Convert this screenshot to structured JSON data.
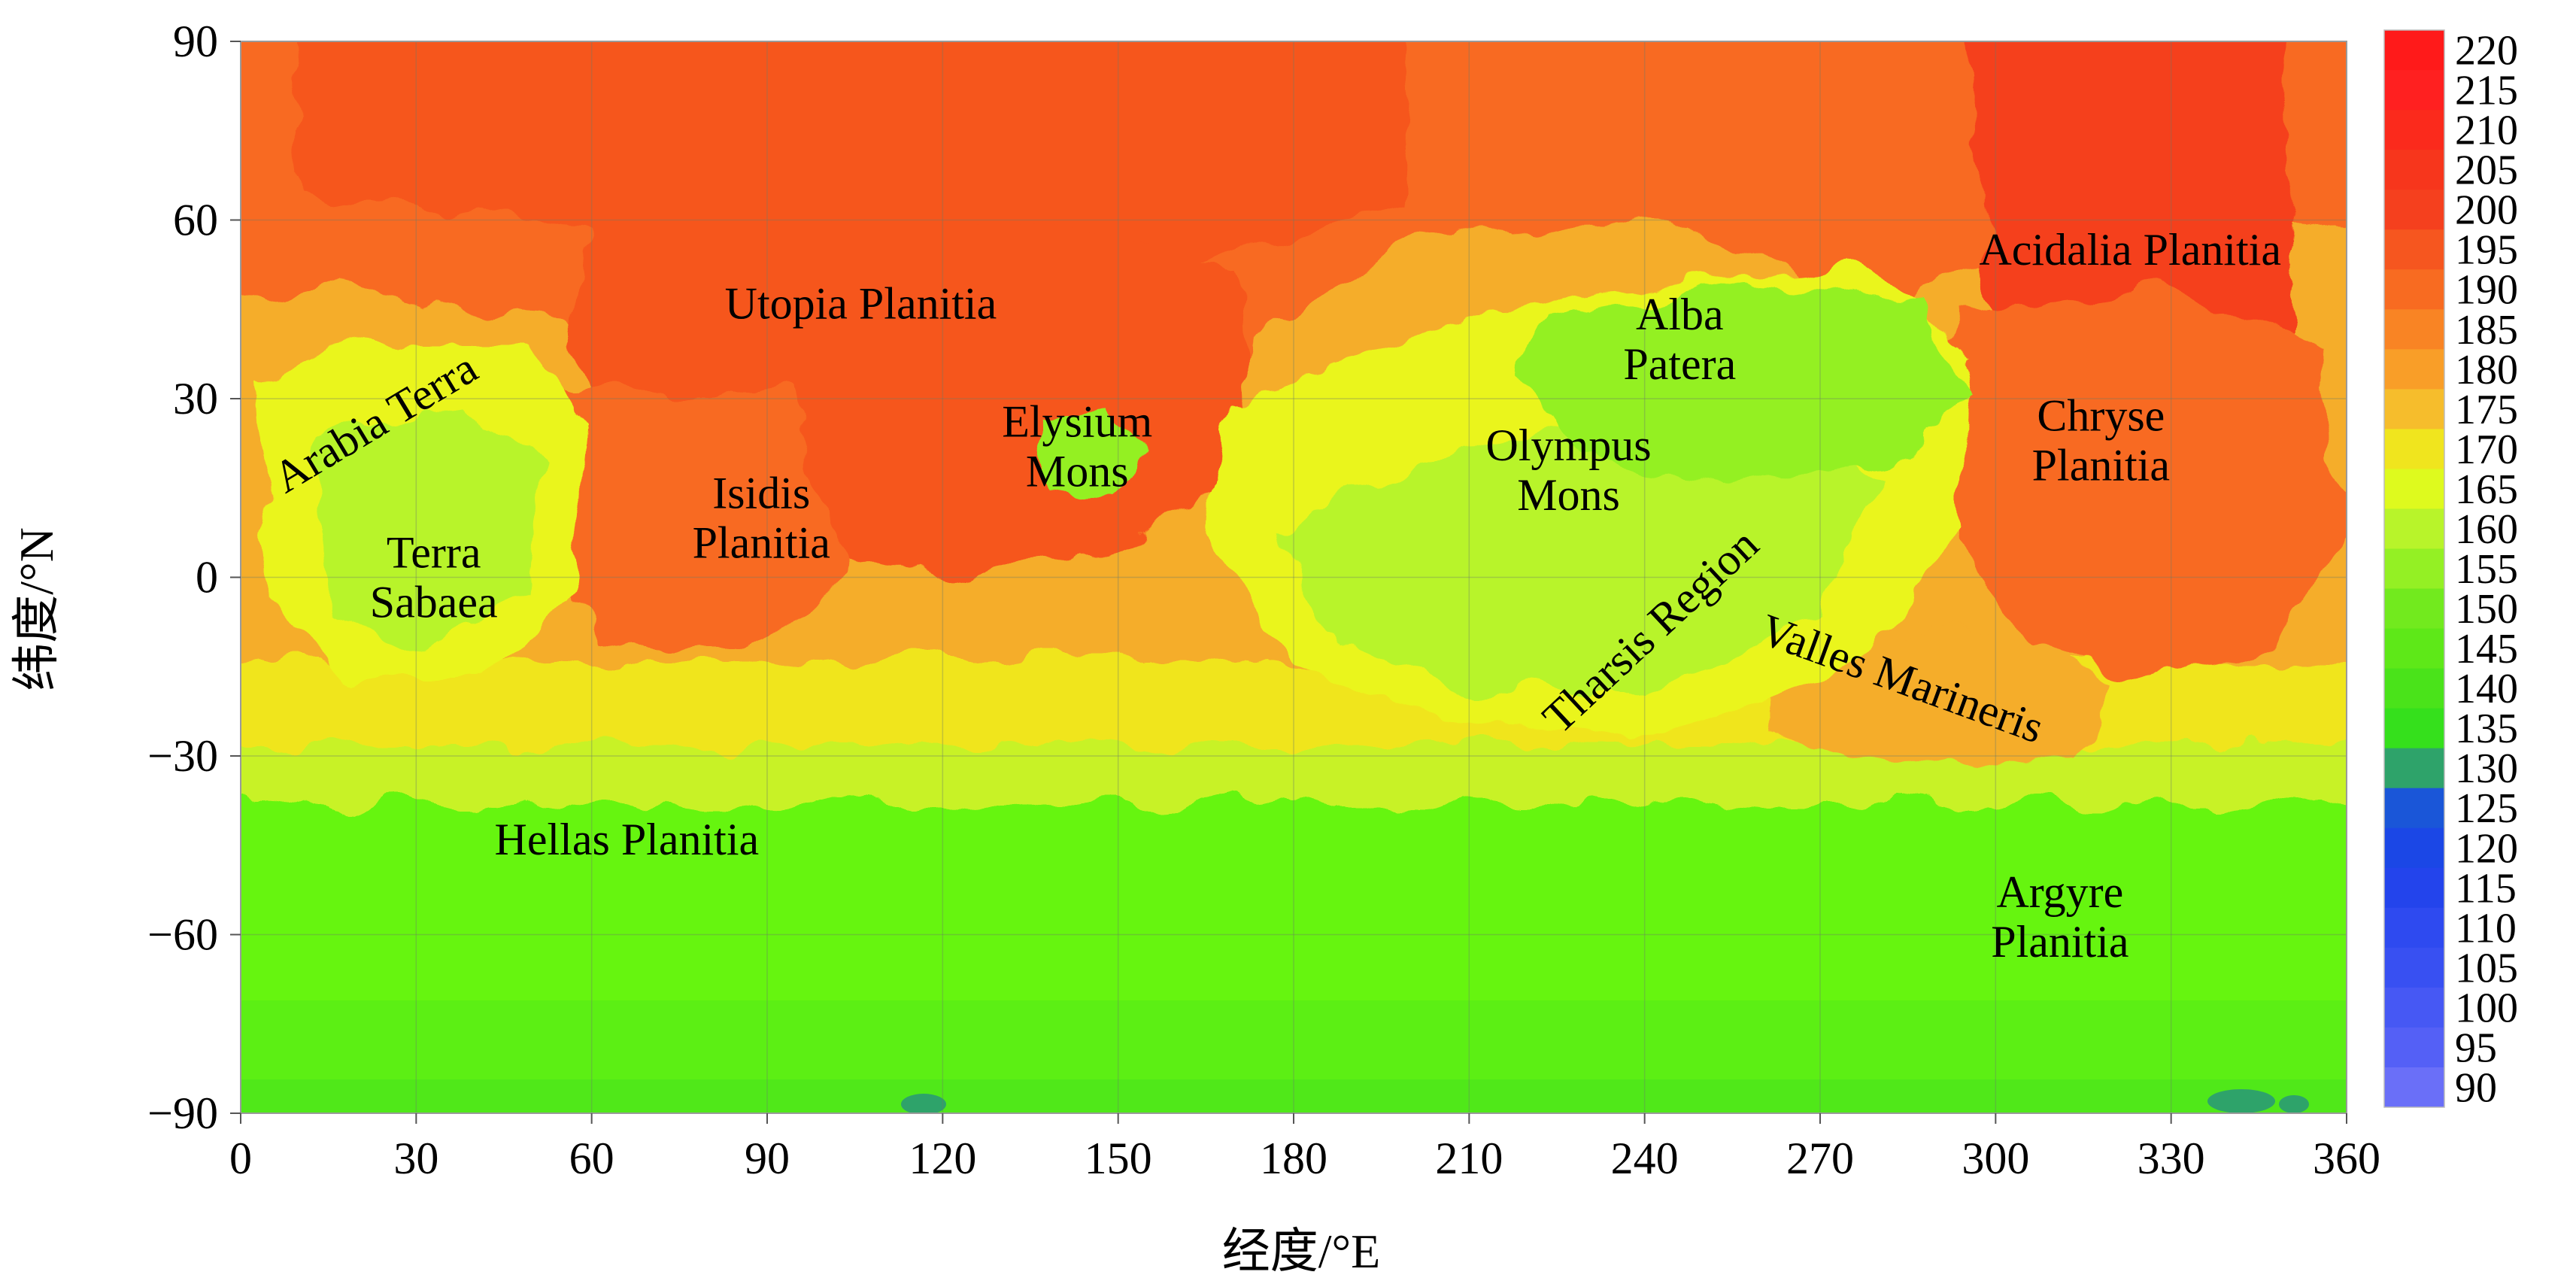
{
  "chart_data": {
    "type": "heatmap",
    "x_axis": {
      "label": "经度/°E",
      "range": [
        0,
        360
      ],
      "ticks": [
        0,
        30,
        60,
        90,
        120,
        150,
        180,
        210,
        240,
        270,
        300,
        330,
        360
      ]
    },
    "y_axis": {
      "label": "纬度/°N",
      "range": [
        -90,
        90
      ],
      "ticks": [
        {
          "value": 90,
          "label": "90"
        },
        {
          "value": 60,
          "label": "60"
        },
        {
          "value": 30,
          "label": "30"
        },
        {
          "value": 0,
          "label": "0"
        },
        {
          "value": -30,
          "label": "−30"
        },
        {
          "value": -60,
          "label": "−60"
        },
        {
          "value": -90,
          "label": "−90"
        }
      ]
    },
    "grid": true,
    "colorbar": {
      "position": "right",
      "levels": [
        {
          "value": 220,
          "label": "220",
          "color": "#ff1a1a"
        },
        {
          "value": 215,
          "label": "215",
          "color": "#ff2020"
        },
        {
          "value": 210,
          "label": "210",
          "color": "#fb2a1c"
        },
        {
          "value": 205,
          "label": "205",
          "color": "#f7361c"
        },
        {
          "value": 200,
          "label": "200",
          "color": "#f5401e"
        },
        {
          "value": 195,
          "label": "195",
          "color": "#f6561f"
        },
        {
          "value": 190,
          "label": "190",
          "color": "#f86b21"
        },
        {
          "value": 185,
          "label": "185",
          "color": "#f98424"
        },
        {
          "value": 180,
          "label": "180",
          "color": "#f99e28"
        },
        {
          "value": 175,
          "label": "175",
          "color": "#f6bd2c"
        },
        {
          "value": 170,
          "label": "170",
          "color": "#f0e51e"
        },
        {
          "value": 165,
          "label": "165",
          "color": "#defa1e"
        },
        {
          "value": 160,
          "label": "160",
          "color": "#b8f42a"
        },
        {
          "value": 155,
          "label": "155",
          "color": "#94f024"
        },
        {
          "value": 150,
          "label": "150",
          "color": "#72ea1e"
        },
        {
          "value": 145,
          "label": "145",
          "color": "#5ee818"
        },
        {
          "value": 140,
          "label": "140",
          "color": "#4ae31a"
        },
        {
          "value": 135,
          "label": "135",
          "color": "#35e01c"
        },
        {
          "value": 130,
          "label": "130",
          "color": "#2ea36a"
        },
        {
          "value": 125,
          "label": "125",
          "color": "#1a56d8"
        },
        {
          "value": 120,
          "label": "120",
          "color": "#1b47e6"
        },
        {
          "value": 115,
          "label": "115",
          "color": "#2344ec"
        },
        {
          "value": 110,
          "label": "110",
          "color": "#2e4af0"
        },
        {
          "value": 105,
          "label": "105",
          "color": "#3850f2"
        },
        {
          "value": 100,
          "label": "100",
          "color": "#4658f4"
        },
        {
          "value": 95,
          "label": "95",
          "color": "#5460f6"
        },
        {
          "value": 90,
          "label": "90",
          "color": "#6a6ff8"
        }
      ]
    },
    "annotations": [
      {
        "name": "arabia-terra",
        "lines": [
          "Arabia Terra"
        ],
        "lon": 23,
        "lat": 26,
        "rotate": -31
      },
      {
        "name": "terra-sabaea",
        "lines": [
          "Terra",
          "Sabaea"
        ],
        "lon": 33,
        "lat": 0
      },
      {
        "name": "utopia-planitia",
        "lines": [
          "Utopia Planitia"
        ],
        "lon": 106,
        "lat": 46
      },
      {
        "name": "isidis-planitia",
        "lines": [
          "Isidis",
          "Planitia"
        ],
        "lon": 89,
        "lat": 10
      },
      {
        "name": "elysium-mons",
        "lines": [
          "Elysium",
          "Mons"
        ],
        "lon": 143,
        "lat": 22
      },
      {
        "name": "alba-patera",
        "lines": [
          "Alba",
          "Patera"
        ],
        "lon": 246,
        "lat": 40
      },
      {
        "name": "olympus-mons",
        "lines": [
          "Olympus",
          "Mons"
        ],
        "lon": 227,
        "lat": 18
      },
      {
        "name": "acidalia-planitia",
        "lines": [
          "Acidalia Planitia"
        ],
        "lon": 323,
        "lat": 55
      },
      {
        "name": "chryse-planitia",
        "lines": [
          "Chryse",
          "Planitia"
        ],
        "lon": 318,
        "lat": 23
      },
      {
        "name": "tharsis-region",
        "lines": [
          "Tharsis Region"
        ],
        "lon": 241,
        "lat": -9,
        "rotate": -43
      },
      {
        "name": "valles-marineris",
        "lines": [
          "Valles Marineris"
        ],
        "lon": 284,
        "lat": -17,
        "rotate": 20
      },
      {
        "name": "hellas-planitia",
        "lines": [
          "Hellas Planitia"
        ],
        "lon": 66,
        "lat": -44
      },
      {
        "name": "argyre-planitia",
        "lines": [
          "Argyre",
          "Planitia"
        ],
        "lon": 311,
        "lat": -57
      }
    ]
  }
}
